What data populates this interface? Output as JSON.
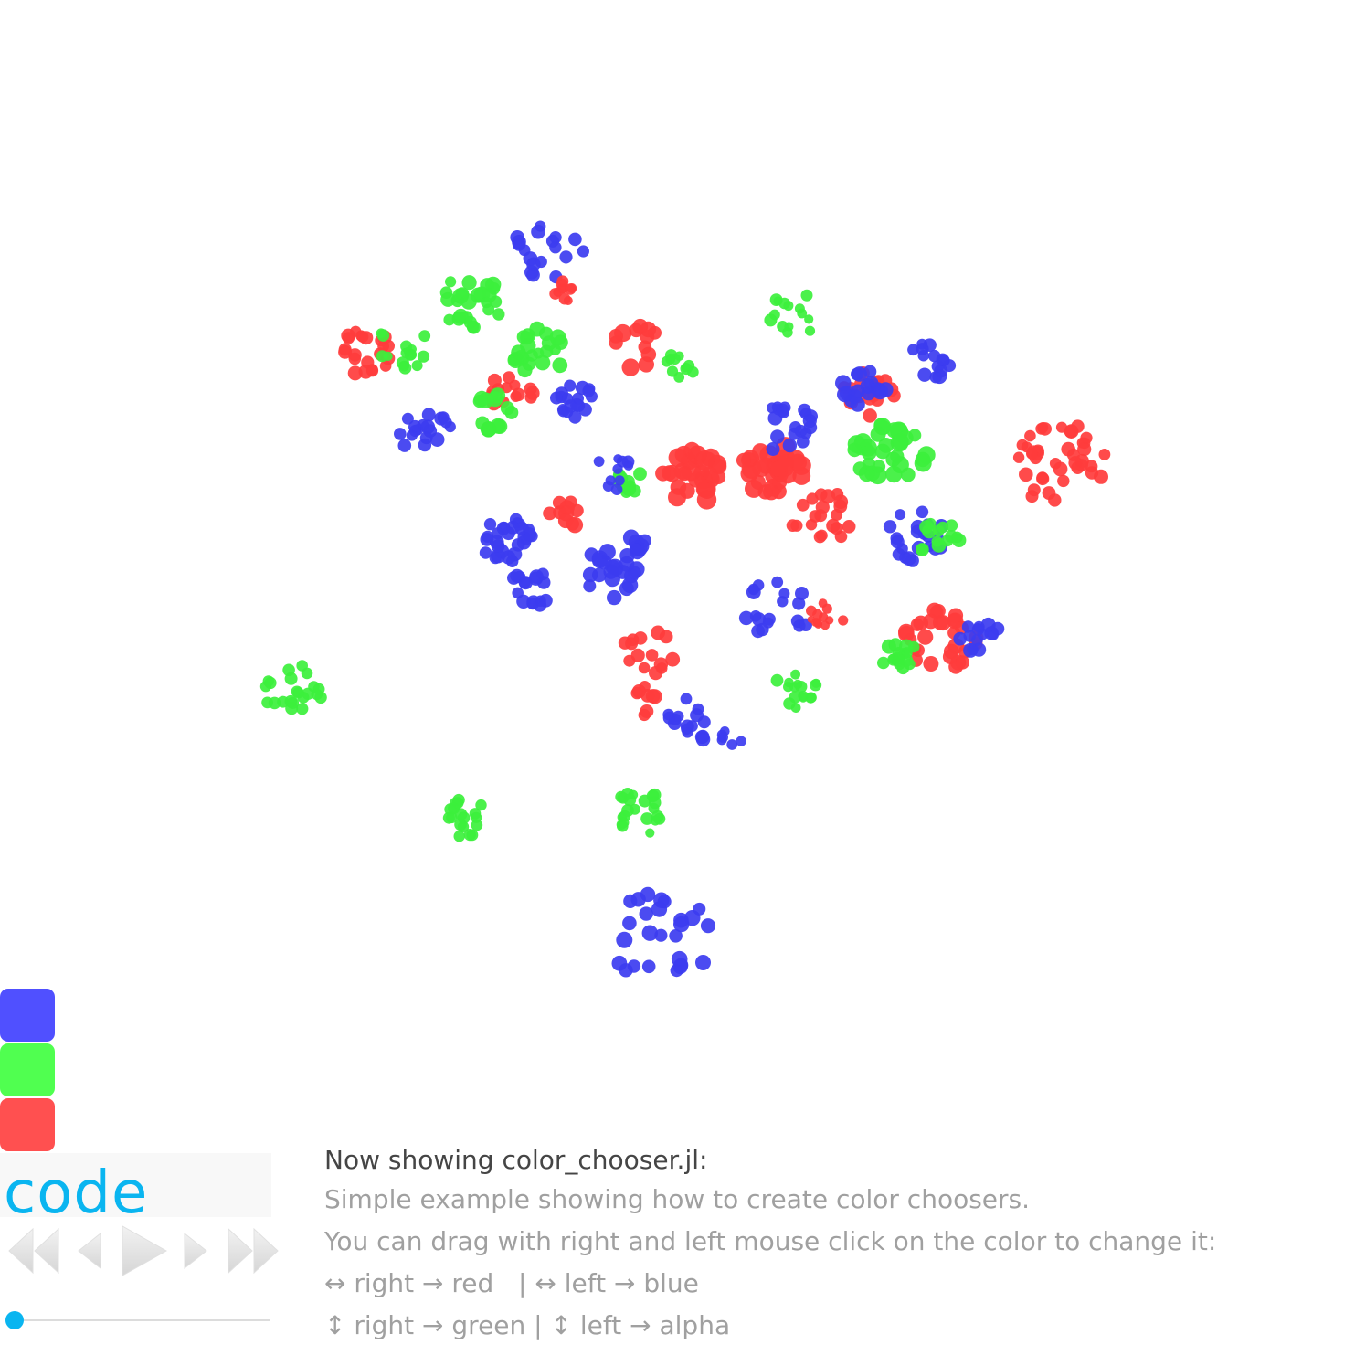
{
  "colors": {
    "red": "#ff3c3c",
    "green": "#3cf03c",
    "blue": "#3c3cf0",
    "swatch_blue": "#5050ff",
    "swatch_green": "#50ff50",
    "swatch_red": "#ff5050",
    "accent": "#0ab5f0"
  },
  "color_swatches": [
    {
      "name": "blue-swatch",
      "color": "#5050ff"
    },
    {
      "name": "green-swatch",
      "color": "#50ff50"
    },
    {
      "name": "red-swatch",
      "color": "#ff5050"
    }
  ],
  "code_button": {
    "label": "code"
  },
  "player_controls": [
    "rewind-icon",
    "step-back-icon",
    "play-icon",
    "step-forward-icon",
    "fast-forward-icon"
  ],
  "timeline_slider": {
    "value": 0
  },
  "info": {
    "now_showing": "Now showing color_chooser.jl:",
    "description": "Simple example showing how to create color choosers.",
    "instructions": "You can drag with right and left mouse click on the color to change it:",
    "mapping_1": "↔ right → red   | ↔ left → blue",
    "mapping_2": "↕ right → green | ↕ left → alpha"
  }
}
